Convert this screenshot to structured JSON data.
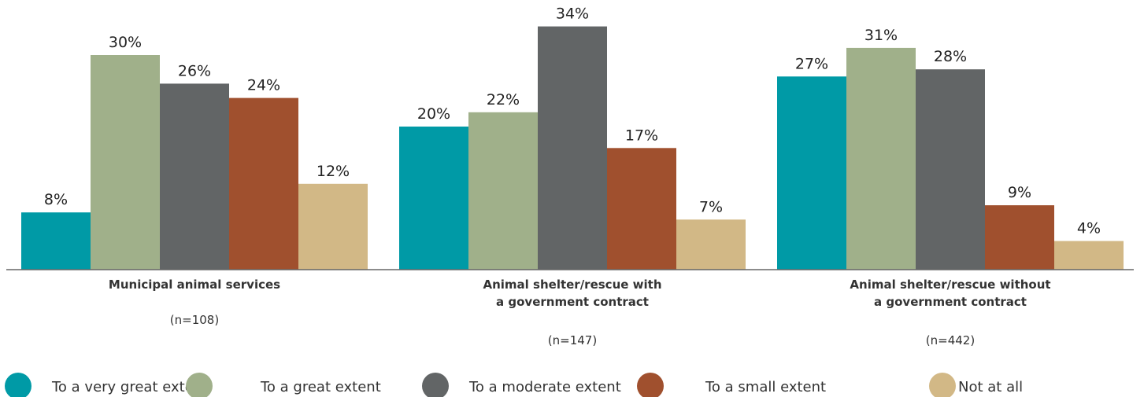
{
  "chart_data": {
    "type": "bar",
    "categories": [
      {
        "lines": [
          "Municipal animal services"
        ],
        "n": "(n=108)"
      },
      {
        "lines": [
          "Animal shelter/rescue with",
          "a government contract"
        ],
        "n": "(n=147)"
      },
      {
        "lines": [
          "Animal shelter/rescue without",
          "a government contract"
        ],
        "n": "(n=442)"
      }
    ],
    "series": [
      {
        "name": "To a very great extent",
        "color": "#009aa6",
        "values": [
          8,
          20,
          27
        ],
        "labels": [
          "8%",
          "20%",
          "27%"
        ]
      },
      {
        "name": "To a great extent",
        "color": "#a0b08a",
        "values": [
          30,
          22,
          31
        ],
        "labels": [
          "30%",
          "22%",
          "31%"
        ]
      },
      {
        "name": "To a moderate extent",
        "color": "#626566",
        "values": [
          26,
          34,
          28
        ],
        "labels": [
          "26%",
          "34%",
          "28%"
        ]
      },
      {
        "name": "To a small extent",
        "color": "#a0502e",
        "values": [
          24,
          17,
          9
        ],
        "labels": [
          "24%",
          "17%",
          "9%"
        ]
      },
      {
        "name": "Not at all",
        "color": "#d2b886",
        "values": [
          12,
          7,
          4
        ],
        "labels": [
          "12%",
          "7%",
          "4%"
        ]
      }
    ],
    "value_format": "percent",
    "ylim": [
      0,
      34
    ],
    "grid": false,
    "legend_position": "bottom"
  }
}
